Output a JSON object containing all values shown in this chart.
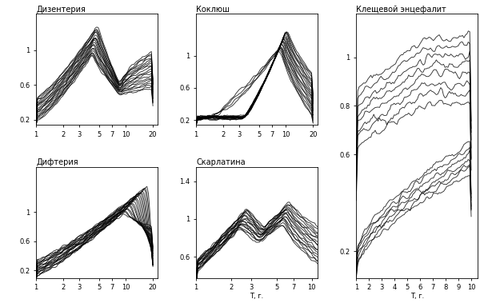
{
  "panels": {
    "dizenteriya": {
      "label": "Дизентерия",
      "x_ticks": [
        1,
        2,
        3,
        5,
        7,
        10,
        20
      ],
      "yticks": [
        0.2,
        0.6,
        1.0
      ],
      "ytick_labels": [
        "0.2",
        "0.6",
        "1"
      ],
      "ylim": [
        0.14,
        1.42
      ],
      "n_lines": 20,
      "x_max": 20
    },
    "koklyush": {
      "label": "Коклюш",
      "x_ticks": [
        1,
        2,
        3,
        5,
        7,
        10,
        20
      ],
      "yticks": [
        0.2,
        0.6,
        1.0
      ],
      "ytick_labels": [
        "0.2",
        "0.6",
        "1"
      ],
      "ylim": [
        0.14,
        1.52
      ],
      "n_lines": 20,
      "x_max": 20
    },
    "kleshevoy": {
      "label": "Клещевой энцефалит",
      "x_ticks": [
        1,
        2,
        3,
        4,
        5,
        6,
        7,
        8,
        9,
        10
      ],
      "yticks": [
        0.2,
        0.6,
        0.8,
        1.0
      ],
      "ytick_labels": [
        "0.2",
        "0.6",
        "0.8",
        "1"
      ],
      "ylim": [
        0.09,
        1.18
      ],
      "n_lines": 15,
      "x_max": 10
    },
    "difteriya": {
      "label": "Дифтерия",
      "x_ticks": [
        1,
        2,
        3,
        5,
        7,
        10,
        20
      ],
      "yticks": [
        0.2,
        0.6,
        1.0
      ],
      "ytick_labels": [
        "0.2",
        "0.6",
        "1"
      ],
      "ylim": [
        0.1,
        1.62
      ],
      "n_lines": 20,
      "x_max": 20
    },
    "skarlatina": {
      "label": "Скарлатина",
      "x_ticks": [
        1,
        2,
        3,
        5,
        7,
        10
      ],
      "yticks": [
        0.6,
        1.0,
        1.4
      ],
      "ytick_labels": [
        "0.6",
        "1",
        "1.4"
      ],
      "ylim": [
        0.38,
        1.55
      ],
      "n_lines": 18,
      "x_max": 12
    }
  },
  "line_color": "#000000",
  "line_alpha": 0.8,
  "line_width": 0.65,
  "bg_color": "#f0f0f0"
}
